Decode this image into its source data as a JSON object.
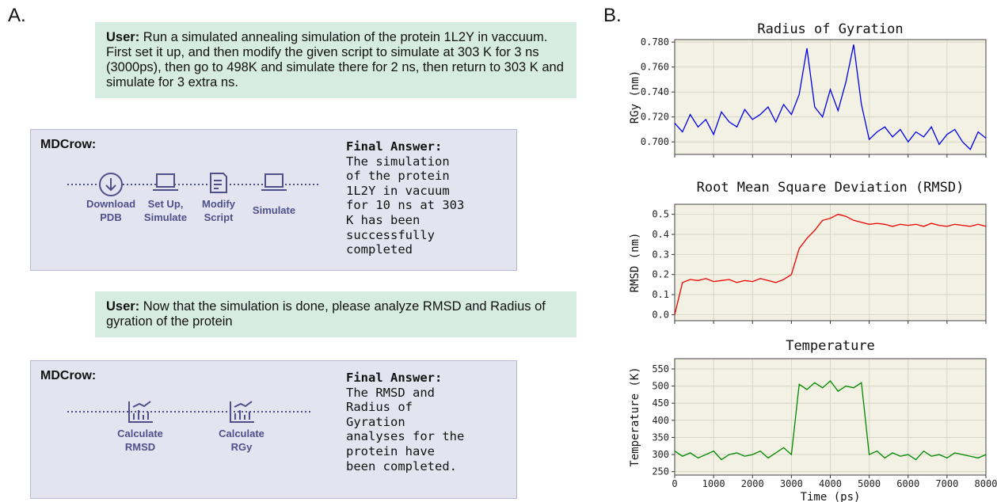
{
  "panel_a": {
    "label": "A.",
    "user_1": {
      "speaker": "User:",
      "text": "Run a simulated annealing simulation of the protein 1L2Y in vaccuum. First set it up, and then modify the given script to simulate at 303 K for 3 ns (3000ps), then go to 498K and simulate there for 2 ns, then return to 303 K and simulate for 3 extra ns."
    },
    "agent_1": {
      "name": "MDCrow:",
      "steps": [
        [
          "Download",
          "PDB"
        ],
        [
          "Set Up,",
          "Simulate"
        ],
        [
          "Modify",
          "Script"
        ],
        [
          "Simulate"
        ]
      ],
      "final_answer_title": "Final Answer:",
      "final_answer_lines": [
        "The simulation",
        "of the protein",
        "1L2Y in vacuum",
        "for 10 ns at 303",
        "K has been",
        "successfully",
        "completed"
      ]
    },
    "user_2": {
      "speaker": "User:",
      "text": "Now that the simulation is done, please analyze RMSD and Radius of gyration of the protein"
    },
    "agent_2": {
      "name": "MDCrow:",
      "steps": [
        [
          "Calculate",
          "RMSD"
        ],
        [
          "Calculate",
          "RGy"
        ]
      ],
      "final_answer_title": "Final Answer:",
      "final_answer_lines": [
        "The RMSD and",
        "Radius of",
        "Gyration",
        "analyses for the",
        "protein have",
        "been completed."
      ]
    }
  },
  "panel_b_label": "B.",
  "chart_data": [
    {
      "type": "line",
      "title": "Radius of Gyration",
      "ylabel": "RGy (nm)",
      "color": "#0000ee",
      "grid": true,
      "xtick_labels": false,
      "x": [
        0,
        200,
        400,
        600,
        800,
        1000,
        1200,
        1400,
        1600,
        1800,
        2000,
        2200,
        2400,
        2600,
        2800,
        3000,
        3200,
        3400,
        3600,
        3800,
        4000,
        4200,
        4400,
        4600,
        4800,
        5000,
        5200,
        5400,
        5600,
        5800,
        6000,
        6200,
        6400,
        6600,
        6800,
        7000,
        7200,
        7400,
        7600,
        7800,
        8000
      ],
      "values": [
        0.715,
        0.708,
        0.722,
        0.712,
        0.718,
        0.706,
        0.724,
        0.716,
        0.712,
        0.726,
        0.718,
        0.722,
        0.728,
        0.716,
        0.73,
        0.722,
        0.738,
        0.775,
        0.728,
        0.72,
        0.742,
        0.725,
        0.748,
        0.778,
        0.73,
        0.702,
        0.708,
        0.712,
        0.704,
        0.71,
        0.7,
        0.708,
        0.704,
        0.712,
        0.698,
        0.706,
        0.71,
        0.7,
        0.694,
        0.708,
        0.703
      ],
      "xlim": [
        0,
        8000
      ],
      "xticks": [
        0,
        1000,
        2000,
        3000,
        4000,
        5000,
        6000,
        7000,
        8000
      ],
      "ylim": [
        0.69,
        0.782
      ],
      "yticks": [
        {
          "value": 0.7,
          "label": "0.700"
        },
        {
          "value": 0.72,
          "label": "0.720"
        },
        {
          "value": 0.74,
          "label": "0.740"
        },
        {
          "value": 0.76,
          "label": "0.760"
        },
        {
          "value": 0.78,
          "label": "0.780"
        }
      ]
    },
    {
      "type": "line",
      "title": "Root Mean Square Deviation (RMSD)",
      "ylabel": "RMSD (nm)",
      "color": "#ee0000",
      "grid": true,
      "xtick_labels": false,
      "x": [
        0,
        200,
        400,
        600,
        800,
        1000,
        1200,
        1400,
        1600,
        1800,
        2000,
        2200,
        2400,
        2600,
        2800,
        3000,
        3200,
        3400,
        3600,
        3800,
        4000,
        4200,
        4400,
        4600,
        4800,
        5000,
        5200,
        5400,
        5600,
        5800,
        6000,
        6200,
        6400,
        6600,
        6800,
        7000,
        7200,
        7400,
        7600,
        7800,
        8000
      ],
      "values": [
        0,
        0.16,
        0.175,
        0.17,
        0.18,
        0.165,
        0.17,
        0.175,
        0.16,
        0.17,
        0.165,
        0.18,
        0.17,
        0.16,
        0.175,
        0.2,
        0.33,
        0.38,
        0.42,
        0.47,
        0.48,
        0.5,
        0.49,
        0.47,
        0.46,
        0.45,
        0.455,
        0.45,
        0.44,
        0.45,
        0.445,
        0.45,
        0.44,
        0.455,
        0.445,
        0.44,
        0.45,
        0.445,
        0.44,
        0.45,
        0.44
      ],
      "xlim": [
        0,
        8000
      ],
      "xticks": [
        0,
        1000,
        2000,
        3000,
        4000,
        5000,
        6000,
        7000,
        8000
      ],
      "ylim": [
        -0.03,
        0.55
      ],
      "yticks": [
        {
          "value": 0,
          "label": "0.0"
        },
        0.1,
        0.2,
        0.3,
        0.4,
        0.5
      ]
    },
    {
      "type": "line",
      "title": "Temperature",
      "ylabel": "Temperature (K)",
      "xlabel": "Time (ps)",
      "color": "#008800",
      "grid": true,
      "xtick_labels": true,
      "x": [
        0,
        200,
        400,
        600,
        800,
        1000,
        1200,
        1400,
        1600,
        1800,
        2000,
        2200,
        2400,
        2600,
        2800,
        3000,
        3200,
        3400,
        3600,
        3800,
        4000,
        4200,
        4400,
        4600,
        4800,
        5000,
        5200,
        5400,
        5600,
        5800,
        6000,
        6200,
        6400,
        6600,
        6800,
        7000,
        7200,
        7400,
        7600,
        7800,
        8000
      ],
      "values": [
        310,
        295,
        305,
        290,
        300,
        310,
        285,
        300,
        305,
        295,
        300,
        310,
        290,
        305,
        320,
        300,
        505,
        490,
        510,
        495,
        515,
        485,
        500,
        495,
        510,
        300,
        310,
        290,
        305,
        295,
        300,
        285,
        310,
        295,
        300,
        290,
        305,
        300,
        295,
        290,
        300
      ],
      "xlim": [
        0,
        8000
      ],
      "xticks": [
        0,
        1000,
        2000,
        3000,
        4000,
        5000,
        6000,
        7000,
        8000
      ],
      "ylim": [
        240,
        580
      ],
      "yticks": [
        250,
        300,
        350,
        400,
        450,
        500,
        550
      ]
    }
  ]
}
